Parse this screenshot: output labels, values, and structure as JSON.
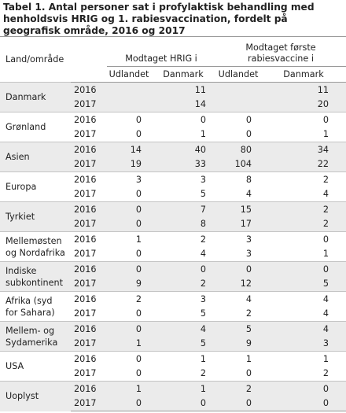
{
  "title": "Tabel 1. Antal personer sat i profylaktisk behandling med henholdsvis HRIG og 1. rabiesvaccination, fordelt på geografisk område, 2016 og 2017",
  "header": {
    "land_label": "Land/område",
    "group1": "Modtaget HRIG i",
    "group2_line1": "Modtaget første",
    "group2_line2": "rabiesvaccine i",
    "sub": [
      "Udlandet",
      "Danmark",
      "Udlandet",
      "Danmark"
    ]
  },
  "rows": [
    {
      "land1": "Danmark",
      "land2": "",
      "y1": {
        "year": "2016",
        "v": [
          "",
          "11",
          "",
          "11"
        ]
      },
      "y2": {
        "year": "2017",
        "v": [
          "",
          "14",
          "",
          "20"
        ]
      }
    },
    {
      "land1": "Grønland",
      "land2": "",
      "y1": {
        "year": "2016",
        "v": [
          "0",
          "0",
          "0",
          "0"
        ]
      },
      "y2": {
        "year": "2017",
        "v": [
          "0",
          "1",
          "0",
          "1"
        ]
      }
    },
    {
      "land1": "Asien",
      "land2": "",
      "y1": {
        "year": "2016",
        "v": [
          "14",
          "40",
          "80",
          "34"
        ]
      },
      "y2": {
        "year": "2017",
        "v": [
          "19",
          "33",
          "104",
          "22"
        ]
      }
    },
    {
      "land1": "Europa",
      "land2": "",
      "y1": {
        "year": "2016",
        "v": [
          "3",
          "3",
          "8",
          "2"
        ]
      },
      "y2": {
        "year": "2017",
        "v": [
          "0",
          "5",
          "4",
          "4"
        ]
      }
    },
    {
      "land1": "Tyrkiet",
      "land2": "",
      "y1": {
        "year": "2016",
        "v": [
          "0",
          "7",
          "15",
          "2"
        ]
      },
      "y2": {
        "year": "2017",
        "v": [
          "0",
          "8",
          "17",
          "2"
        ]
      }
    },
    {
      "land1": "Mellemøsten",
      "land2": "og Nordafrika",
      "y1": {
        "year": "2016",
        "v": [
          "1",
          "2",
          "3",
          "0"
        ]
      },
      "y2": {
        "year": "2017",
        "v": [
          "0",
          "4",
          "3",
          "1"
        ]
      }
    },
    {
      "land1": "Indiske",
      "land2": "subkontinent",
      "y1": {
        "year": "2016",
        "v": [
          "0",
          "0",
          "0",
          "0"
        ]
      },
      "y2": {
        "year": "2017",
        "v": [
          "9",
          "2",
          "12",
          "5"
        ]
      }
    },
    {
      "land1": "Afrika (syd",
      "land2": "for Sahara)",
      "y1": {
        "year": "2016",
        "v": [
          "2",
          "3",
          "4",
          "4"
        ]
      },
      "y2": {
        "year": "2017",
        "v": [
          "0",
          "5",
          "2",
          "4"
        ]
      }
    },
    {
      "land1": "Mellem- og",
      "land2": "Sydamerika",
      "y1": {
        "year": "2016",
        "v": [
          "0",
          "4",
          "5",
          "4"
        ]
      },
      "y2": {
        "year": "2017",
        "v": [
          "1",
          "5",
          "9",
          "3"
        ]
      }
    },
    {
      "land1": "USA",
      "land2": "",
      "y1": {
        "year": "2016",
        "v": [
          "0",
          "1",
          "1",
          "1"
        ]
      },
      "y2": {
        "year": "2017",
        "v": [
          "0",
          "2",
          "0",
          "2"
        ]
      }
    },
    {
      "land1": "Uoplyst",
      "land2": "",
      "y1": {
        "year": "2016",
        "v": [
          "1",
          "1",
          "2",
          "0"
        ]
      },
      "y2": {
        "year": "2017",
        "v": [
          "0",
          "0",
          "0",
          "0"
        ]
      }
    }
  ]
}
